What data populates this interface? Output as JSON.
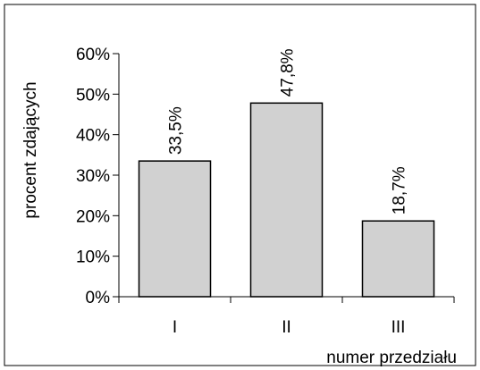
{
  "chart_data": {
    "type": "bar",
    "title": "",
    "xlabel": "numer przedziału",
    "ylabel": "procent zdających",
    "categories": [
      "I",
      "II",
      "III"
    ],
    "values": [
      33.5,
      47.8,
      18.7
    ],
    "data_labels": [
      "33,5%",
      "47,8%",
      "18,7%"
    ],
    "ylim": [
      0,
      60
    ],
    "yticks": [
      0,
      10,
      20,
      30,
      40,
      50,
      60
    ],
    "ytick_labels": [
      "0%",
      "10%",
      "20%",
      "30%",
      "40%",
      "50%",
      "60%"
    ],
    "grid": false,
    "legend": "none",
    "bar_fill": "hatched-gray",
    "colors": {
      "bar_fill": "#e6e6e6",
      "bar_stroke": "#000000",
      "axis": "#000000"
    }
  }
}
